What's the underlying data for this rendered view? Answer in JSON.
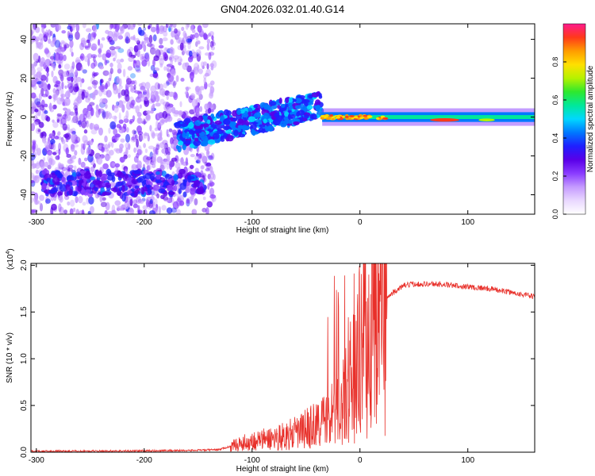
{
  "figure_title": "GN04.2026.032.01.40.G14",
  "chart_data": [
    {
      "type": "heatmap",
      "xlabel": "Height of straight line (km)",
      "ylabel": "Frequency (Hz)",
      "xlim": [
        -305,
        162
      ],
      "ylim": [
        -50,
        48
      ],
      "xticks": [
        -300,
        -200,
        -100,
        0,
        100
      ],
      "yticks": [
        -40,
        -20,
        0,
        20,
        40
      ],
      "grid": false,
      "colorbar": {
        "label": "Normalized spectral amplitude",
        "range": [
          0,
          1
        ],
        "ticks": [
          "0.0",
          "0.2",
          "0.4",
          "0.6",
          "0.8"
        ],
        "colors": [
          "#ffffff",
          "#e9d8ff",
          "#c59bff",
          "#8a3cff",
          "#5a00e8",
          "#1f1fff",
          "#0078ff",
          "#00d8ff",
          "#00e89a",
          "#2ee82e",
          "#b6f200",
          "#ffe000",
          "#ff9c00",
          "#ff3a1a",
          "#ff1a8c"
        ]
      },
      "features": [
        {
          "name": "",
          "x_range": [
            -305,
            -135
          ],
          "freq_range": [
            -50,
            48
          ],
          "level": 0.2
        },
        {
          "name": "",
          "x_range": [
            -170,
            -35
          ],
          "freq_center": [
            -10,
            8
          ],
          "level": 0.35
        },
        {
          "name": "",
          "x_range": [
            -35,
            162
          ],
          "freq_center": 0,
          "level": 0.5
        },
        {
          "name": "",
          "x_range": [
            65,
            92
          ],
          "freq_center": -2,
          "level": 0.95
        }
      ]
    },
    {
      "type": "line",
      "xlabel": "Height of straight line (km)",
      "ylabel": "SNR (10 * v/v)",
      "y_multiplier": "(x10",
      "y_multiplier_exp": "4",
      "y_multiplier_close": ")",
      "xlim": [
        -305,
        162
      ],
      "ylim": [
        0,
        2.02
      ],
      "xticks": [
        -300,
        -200,
        -100,
        0,
        100
      ],
      "yticks": [
        "0.0",
        "0.5",
        "1.0",
        "1.5",
        "2.0"
      ],
      "grid": false,
      "series": [
        {
          "name": "",
          "color": "#e8302a",
          "x": [
            -305,
            -250,
            -200,
            -150,
            -130,
            -115,
            -100,
            -80,
            -60,
            -50,
            -40,
            -30,
            -25,
            -20,
            -15,
            -10,
            -5,
            0,
            5,
            10,
            15,
            20,
            30,
            40,
            50,
            60,
            70,
            80,
            90,
            100,
            110,
            120,
            130,
            140,
            150,
            162
          ],
          "y": [
            0.01,
            0.012,
            0.015,
            0.02,
            0.03,
            0.08,
            0.12,
            0.15,
            0.2,
            0.25,
            0.3,
            0.35,
            0.4,
            0.45,
            0.55,
            0.7,
            0.9,
            1.1,
            1.3,
            1.45,
            1.55,
            1.6,
            1.7,
            1.78,
            1.8,
            1.8,
            1.8,
            1.79,
            1.78,
            1.77,
            1.76,
            1.75,
            1.73,
            1.71,
            1.69,
            1.66
          ]
        }
      ]
    }
  ]
}
